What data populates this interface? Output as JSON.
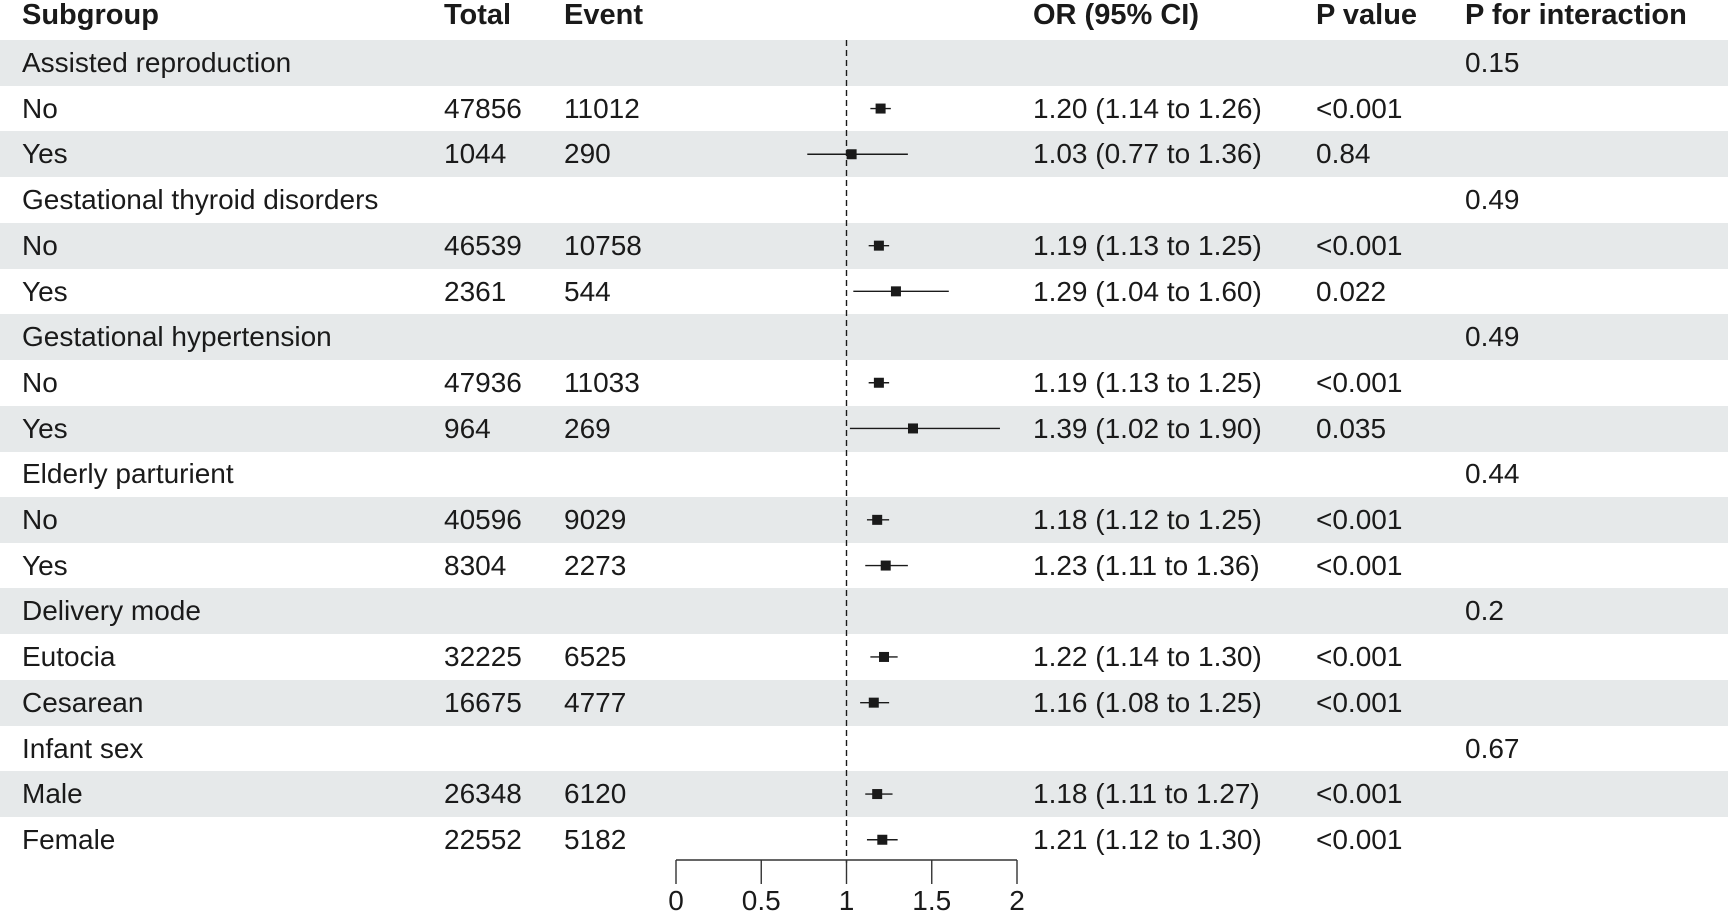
{
  "headers": {
    "subgroup": "Subgroup",
    "total": "Total",
    "event": "Event",
    "or_ci": "OR (95% CI)",
    "p_value": "P value",
    "p_interaction": "P for interaction"
  },
  "rows": [
    {
      "subgroup": "Assisted reproduction",
      "total": "",
      "event": "",
      "or_ci": "",
      "p_value": "",
      "p_interaction": "0.15",
      "header": true,
      "shaded": true
    },
    {
      "subgroup": "No",
      "total": "47856",
      "event": "11012",
      "or_ci": "1.20 (1.14 to 1.26)",
      "p_value": "<0.001",
      "p_interaction": "",
      "or": 1.2,
      "lo": 1.14,
      "hi": 1.26,
      "shaded": false
    },
    {
      "subgroup": "Yes",
      "total": "1044",
      "event": "290",
      "or_ci": "1.03 (0.77 to 1.36)",
      "p_value": "0.84",
      "p_interaction": "",
      "or": 1.03,
      "lo": 0.77,
      "hi": 1.36,
      "shaded": true
    },
    {
      "subgroup": "Gestational thyroid disorders",
      "total": "",
      "event": "",
      "or_ci": "",
      "p_value": "",
      "p_interaction": "0.49",
      "header": true,
      "shaded": false
    },
    {
      "subgroup": "No",
      "total": "46539",
      "event": "10758",
      "or_ci": "1.19 (1.13 to 1.25)",
      "p_value": "<0.001",
      "p_interaction": "",
      "or": 1.19,
      "lo": 1.13,
      "hi": 1.25,
      "shaded": true
    },
    {
      "subgroup": "Yes",
      "total": "2361",
      "event": "544",
      "or_ci": "1.29 (1.04 to 1.60)",
      "p_value": "0.022",
      "p_interaction": "",
      "or": 1.29,
      "lo": 1.04,
      "hi": 1.6,
      "shaded": false
    },
    {
      "subgroup": "Gestational hypertension",
      "total": "",
      "event": "",
      "or_ci": "",
      "p_value": "",
      "p_interaction": "0.49",
      "header": true,
      "shaded": true
    },
    {
      "subgroup": "No",
      "total": "47936",
      "event": "11033",
      "or_ci": "1.19 (1.13 to 1.25)",
      "p_value": "<0.001",
      "p_interaction": "",
      "or": 1.19,
      "lo": 1.13,
      "hi": 1.25,
      "shaded": false
    },
    {
      "subgroup": "Yes",
      "total": "964",
      "event": "269",
      "or_ci": "1.39 (1.02 to 1.90)",
      "p_value": "0.035",
      "p_interaction": "",
      "or": 1.39,
      "lo": 1.02,
      "hi": 1.9,
      "shaded": true
    },
    {
      "subgroup": "Elderly parturient",
      "total": "",
      "event": "",
      "or_ci": "",
      "p_value": "",
      "p_interaction": "0.44",
      "header": true,
      "shaded": false
    },
    {
      "subgroup": "No",
      "total": "40596",
      "event": "9029",
      "or_ci": "1.18 (1.12 to 1.25)",
      "p_value": "<0.001",
      "p_interaction": "",
      "or": 1.18,
      "lo": 1.12,
      "hi": 1.25,
      "shaded": true
    },
    {
      "subgroup": "Yes",
      "total": "8304",
      "event": "2273",
      "or_ci": "1.23 (1.11 to 1.36)",
      "p_value": "<0.001",
      "p_interaction": "",
      "or": 1.23,
      "lo": 1.11,
      "hi": 1.36,
      "shaded": false
    },
    {
      "subgroup": "Delivery mode",
      "total": "",
      "event": "",
      "or_ci": "",
      "p_value": "",
      "p_interaction": "0.2",
      "header": true,
      "shaded": true
    },
    {
      "subgroup": "Eutocia",
      "total": "32225",
      "event": "6525",
      "or_ci": "1.22 (1.14 to 1.30)",
      "p_value": "<0.001",
      "p_interaction": "",
      "or": 1.22,
      "lo": 1.14,
      "hi": 1.3,
      "shaded": false
    },
    {
      "subgroup": "Cesarean",
      "total": "16675",
      "event": "4777",
      "or_ci": "1.16 (1.08 to 1.25)",
      "p_value": "<0.001",
      "p_interaction": "",
      "or": 1.16,
      "lo": 1.08,
      "hi": 1.25,
      "shaded": true
    },
    {
      "subgroup": "Infant sex",
      "total": "",
      "event": "",
      "or_ci": "",
      "p_value": "",
      "p_interaction": "0.67",
      "header": true,
      "shaded": false
    },
    {
      "subgroup": "Male",
      "total": "26348",
      "event": "6120",
      "or_ci": "1.18 (1.11 to 1.27)",
      "p_value": "<0.001",
      "p_interaction": "",
      "or": 1.18,
      "lo": 1.11,
      "hi": 1.27,
      "shaded": true
    },
    {
      "subgroup": "Female",
      "total": "22552",
      "event": "5182",
      "or_ci": "1.21 (1.12 to 1.30)",
      "p_value": "<0.001",
      "p_interaction": "",
      "or": 1.21,
      "lo": 1.12,
      "hi": 1.3,
      "shaded": false
    }
  ],
  "chart_data": {
    "type": "forest",
    "xlim": [
      0,
      2
    ],
    "ticks": [
      "0",
      "0.5",
      "1",
      "1.5",
      "2"
    ],
    "tick_values": [
      0,
      0.5,
      1,
      1.5,
      2
    ],
    "reference_line": 1,
    "series": [
      {
        "values": [
          {
            "or": 1.2,
            "lo": 1.14,
            "hi": 1.26
          },
          {
            "or": 1.03,
            "lo": 0.77,
            "hi": 1.36
          },
          {
            "or": 1.19,
            "lo": 1.13,
            "hi": 1.25
          },
          {
            "or": 1.29,
            "lo": 1.04,
            "hi": 1.6
          },
          {
            "or": 1.19,
            "lo": 1.13,
            "hi": 1.25
          },
          {
            "or": 1.39,
            "lo": 1.02,
            "hi": 1.9
          },
          {
            "or": 1.18,
            "lo": 1.12,
            "hi": 1.25
          },
          {
            "or": 1.23,
            "lo": 1.11,
            "hi": 1.36
          },
          {
            "or": 1.22,
            "lo": 1.14,
            "hi": 1.3
          },
          {
            "or": 1.16,
            "lo": 1.08,
            "hi": 1.25
          },
          {
            "or": 1.18,
            "lo": 1.11,
            "hi": 1.27
          },
          {
            "or": 1.21,
            "lo": 1.12,
            "hi": 1.3
          }
        ]
      }
    ]
  },
  "colors": {
    "shade": "#e6e9ea",
    "ink": "#1a1a1a"
  }
}
